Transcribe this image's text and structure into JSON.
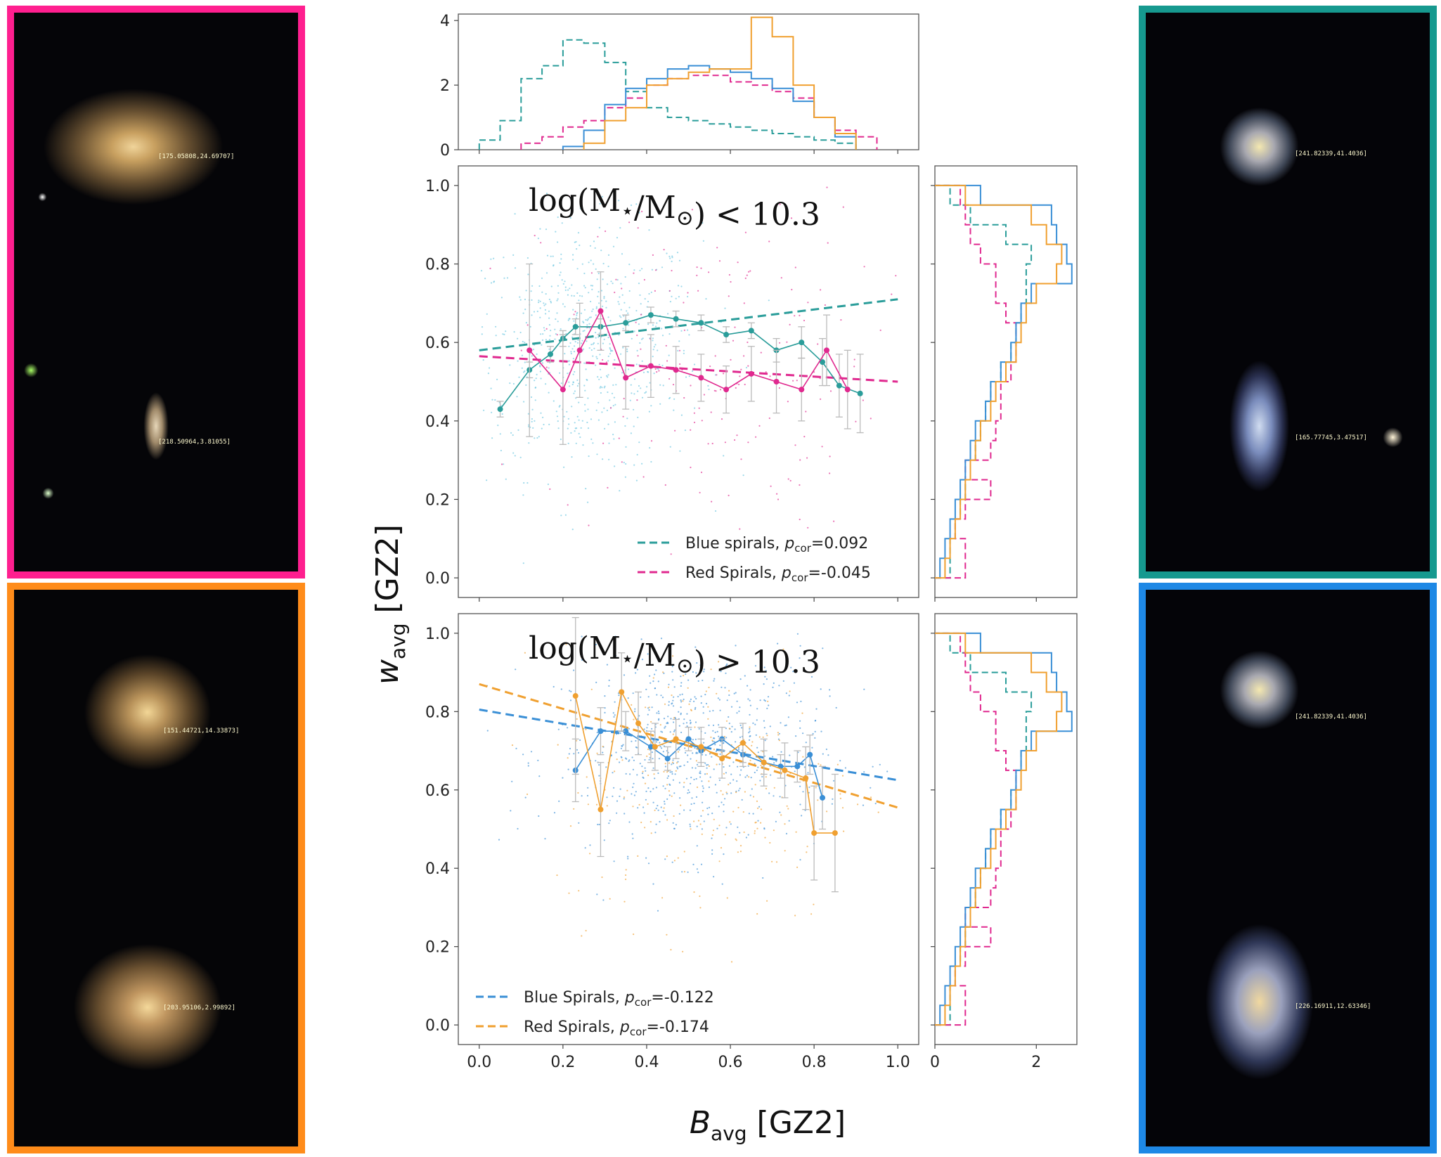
{
  "colors": {
    "teal": "#2a9d9a",
    "magenta": "#e0298f",
    "blue": "#3a8fd6",
    "orange": "#f0a030",
    "lightblue": "#6bc6e0",
    "panel_pink": "#ff1f8f",
    "panel_orange": "#ff8c1a",
    "panel_teal": "#16998f",
    "panel_blue": "#1e88e5"
  },
  "images": {
    "top_left": {
      "color": "panel_pink",
      "labels": [
        "[175.05808,24.69707]",
        "[218.50964,3.81055]"
      ]
    },
    "bottom_left": {
      "color": "panel_orange",
      "labels": [
        "[151.44721,14.33873]",
        "[203.95106,2.99892]"
      ]
    },
    "top_right": {
      "color": "panel_teal",
      "labels": [
        "[241.82339,41.4036]",
        "[165.77745,3.47517]"
      ]
    },
    "bottom_right": {
      "color": "panel_blue",
      "labels": [
        "[241.82339,41.4036]",
        "[226.16911,12.63346]"
      ]
    }
  },
  "chart_data": {
    "type": "scatter",
    "xlabel_main": "B",
    "xlabel_sub": "avg",
    "xlabel_suffix": " [GZ2]",
    "ylabel_main": "w",
    "ylabel_sub": "avg",
    "ylabel_suffix": " [GZ2]",
    "xlim": [
      -0.05,
      1.05
    ],
    "ylim": [
      -0.05,
      1.05
    ],
    "xticks": [
      "0.0",
      "0.2",
      "0.4",
      "0.6",
      "0.8",
      "1.0"
    ],
    "yticks": [
      "0.0",
      "0.2",
      "0.4",
      "0.6",
      "0.8",
      "1.0"
    ],
    "top_hist": {
      "ylim": [
        0,
        4.2
      ],
      "yticks": [
        "0",
        "2",
        "4"
      ],
      "series": [
        {
          "name": "blue spirals (low mass)",
          "color": "teal",
          "dashed": true,
          "edges": [
            0,
            0.05,
            0.1,
            0.15,
            0.2,
            0.25,
            0.3,
            0.35,
            0.4,
            0.45,
            0.5,
            0.55,
            0.6,
            0.65,
            0.7,
            0.75,
            0.8,
            0.85,
            0.9
          ],
          "values": [
            0.3,
            0.9,
            2.2,
            2.6,
            3.4,
            3.3,
            2.7,
            1.8,
            1.3,
            1.0,
            0.9,
            0.8,
            0.7,
            0.6,
            0.5,
            0.4,
            0.3,
            0.2
          ]
        },
        {
          "name": "red spirals (low mass)",
          "color": "magenta",
          "dashed": true,
          "edges": [
            0.1,
            0.15,
            0.2,
            0.25,
            0.3,
            0.35,
            0.4,
            0.45,
            0.5,
            0.55,
            0.6,
            0.65,
            0.7,
            0.75,
            0.8,
            0.85,
            0.9,
            0.95
          ],
          "values": [
            0.2,
            0.4,
            0.7,
            0.9,
            1.3,
            1.6,
            2.0,
            2.2,
            2.3,
            2.3,
            2.1,
            2.0,
            1.8,
            1.6,
            1.0,
            0.6,
            0.4
          ]
        },
        {
          "name": "blue spirals (high mass)",
          "color": "blue",
          "dashed": false,
          "edges": [
            0.2,
            0.25,
            0.3,
            0.35,
            0.4,
            0.45,
            0.5,
            0.55,
            0.6,
            0.65,
            0.7,
            0.75,
            0.8,
            0.85,
            0.9
          ],
          "values": [
            0.1,
            0.6,
            1.4,
            1.9,
            2.2,
            2.5,
            2.6,
            2.5,
            2.4,
            2.2,
            1.9,
            1.5,
            1.0,
            0.4
          ]
        },
        {
          "name": "red spirals (high mass)",
          "color": "orange",
          "dashed": false,
          "edges": [
            0.25,
            0.3,
            0.35,
            0.4,
            0.45,
            0.5,
            0.55,
            0.6,
            0.65,
            0.7,
            0.75,
            0.8,
            0.85,
            0.9
          ],
          "values": [
            0.2,
            0.9,
            1.3,
            2.0,
            2.2,
            2.4,
            2.5,
            2.5,
            4.1,
            3.5,
            2.0,
            1.0,
            0.5
          ]
        }
      ]
    },
    "right_hist": {
      "xlim": [
        0,
        2.8
      ],
      "xticks": [
        "0",
        "2"
      ],
      "series": [
        {
          "color": "teal",
          "dashed": true,
          "edges": [
            0,
            0.05,
            0.1,
            0.15,
            0.2,
            0.25,
            0.3,
            0.35,
            0.4,
            0.45,
            0.5,
            0.55,
            0.6,
            0.65,
            0.7,
            0.75,
            0.8,
            0.85,
            0.9,
            0.95,
            1.0
          ],
          "values": [
            0.3,
            0.3,
            0.4,
            0.5,
            0.6,
            0.7,
            0.8,
            0.9,
            1.0,
            1.1,
            1.3,
            1.5,
            1.6,
            1.7,
            1.8,
            1.8,
            1.9,
            1.4,
            0.7,
            0.3
          ]
        },
        {
          "color": "magenta",
          "dashed": true,
          "edges": [
            0,
            0.05,
            0.1,
            0.15,
            0.2,
            0.25,
            0.3,
            0.35,
            0.4,
            0.45,
            0.5,
            0.55,
            0.6,
            0.65,
            0.7,
            0.75,
            0.8,
            0.85,
            0.9,
            0.95,
            1.0
          ],
          "values": [
            0.6,
            0.6,
            0.4,
            0.6,
            1.1,
            0.6,
            1.1,
            1.2,
            1.3,
            1.3,
            1.5,
            1.6,
            1.6,
            1.4,
            1.2,
            1.2,
            0.9,
            0.7,
            0.6,
            0.5
          ]
        },
        {
          "color": "blue",
          "dashed": false,
          "edges": [
            0,
            0.05,
            0.1,
            0.15,
            0.2,
            0.25,
            0.3,
            0.35,
            0.4,
            0.45,
            0.5,
            0.55,
            0.6,
            0.65,
            0.7,
            0.75,
            0.8,
            0.85,
            0.9,
            0.95,
            1.0
          ],
          "values": [
            0.1,
            0.2,
            0.3,
            0.4,
            0.5,
            0.6,
            0.7,
            0.8,
            1.0,
            1.1,
            1.3,
            1.5,
            1.6,
            1.7,
            1.9,
            2.7,
            2.6,
            2.4,
            2.3,
            0.9
          ]
        },
        {
          "color": "orange",
          "dashed": false,
          "edges": [
            0,
            0.05,
            0.1,
            0.15,
            0.2,
            0.25,
            0.3,
            0.35,
            0.4,
            0.45,
            0.5,
            0.55,
            0.6,
            0.65,
            0.7,
            0.75,
            0.8,
            0.85,
            0.9,
            0.95,
            1.0
          ],
          "values": [
            0.2,
            0.3,
            0.4,
            0.5,
            0.6,
            0.7,
            0.8,
            0.9,
            1.1,
            1.2,
            1.4,
            1.6,
            1.7,
            1.8,
            2.0,
            2.4,
            2.5,
            2.2,
            1.9,
            0.6
          ]
        }
      ]
    },
    "panels": [
      {
        "id": "low",
        "title": "log(M",
        "title_star": "⋆",
        "title_mid": "/M",
        "title_sun": "⊙",
        "title_end": ") < 10.3",
        "scatter_series": [
          {
            "color": "lightblue",
            "n": 700,
            "xc": 0.25,
            "xs": 0.14,
            "yc": 0.58,
            "ys": 0.16
          },
          {
            "color": "magenta",
            "n": 200,
            "xc": 0.55,
            "xs": 0.2,
            "yc": 0.55,
            "ys": 0.22
          }
        ],
        "binned": [
          {
            "name": "Blue spirals",
            "color": "teal",
            "x": [
              0.05,
              0.12,
              0.17,
              0.2,
              0.23,
              0.29,
              0.35,
              0.41,
              0.47,
              0.53,
              0.59,
              0.65,
              0.71,
              0.77,
              0.82,
              0.86,
              0.91
            ],
            "y": [
              0.43,
              0.53,
              0.57,
              0.61,
              0.64,
              0.64,
              0.65,
              0.67,
              0.66,
              0.65,
              0.62,
              0.63,
              0.58,
              0.6,
              0.55,
              0.49,
              0.47
            ],
            "err": [
              0.02,
              0.02,
              0.02,
              0.02,
              0.02,
              0.02,
              0.02,
              0.02,
              0.02,
              0.02,
              0.02,
              0.02,
              0.03,
              0.04,
              0.06,
              0.08,
              0.1
            ]
          },
          {
            "name": "Red Spirals",
            "color": "magenta",
            "x": [
              0.12,
              0.2,
              0.24,
              0.29,
              0.35,
              0.41,
              0.47,
              0.53,
              0.59,
              0.65,
              0.71,
              0.77,
              0.83,
              0.88
            ],
            "y": [
              0.58,
              0.48,
              0.58,
              0.68,
              0.51,
              0.54,
              0.53,
              0.51,
              0.48,
              0.52,
              0.5,
              0.48,
              0.58,
              0.48
            ],
            "err": [
              0.22,
              0.14,
              0.12,
              0.1,
              0.08,
              0.08,
              0.06,
              0.06,
              0.06,
              0.07,
              0.08,
              0.08,
              0.09,
              0.1
            ]
          }
        ],
        "fits": [
          {
            "name": "Blue spirals",
            "color": "teal",
            "x": [
              0,
              1.0
            ],
            "y": [
              0.58,
              0.71
            ]
          },
          {
            "name": "Red Spirals",
            "color": "magenta",
            "x": [
              0,
              1.0
            ],
            "y": [
              0.565,
              0.5
            ]
          }
        ],
        "legend": [
          {
            "color": "teal",
            "label": "Blue spirals, ",
            "p": "p",
            "sub": "cor",
            "val": "=0.092"
          },
          {
            "color": "magenta",
            "label": "Red Spirals, ",
            "p": "p",
            "sub": "cor",
            "val": "=-0.045"
          }
        ]
      },
      {
        "id": "high",
        "title": "log(M",
        "title_star": "⋆",
        "title_mid": "/M",
        "title_sun": "⊙",
        "title_end": ") > 10.3",
        "scatter_series": [
          {
            "color": "blue",
            "n": 700,
            "xc": 0.5,
            "xs": 0.16,
            "yc": 0.7,
            "ys": 0.13
          },
          {
            "color": "orange",
            "n": 250,
            "xc": 0.55,
            "xs": 0.18,
            "yc": 0.62,
            "ys": 0.18
          }
        ],
        "binned": [
          {
            "name": "Blue Spirals",
            "color": "blue",
            "x": [
              0.23,
              0.29,
              0.35,
              0.41,
              0.45,
              0.5,
              0.53,
              0.58,
              0.63,
              0.68,
              0.72,
              0.76,
              0.79,
              0.82
            ],
            "y": [
              0.65,
              0.75,
              0.75,
              0.71,
              0.68,
              0.73,
              0.7,
              0.73,
              0.69,
              0.67,
              0.66,
              0.66,
              0.69,
              0.58
            ],
            "err": [
              0.08,
              0.06,
              0.05,
              0.04,
              0.03,
              0.03,
              0.03,
              0.03,
              0.03,
              0.03,
              0.03,
              0.04,
              0.05,
              0.08
            ]
          },
          {
            "name": "Red Spirals",
            "color": "orange",
            "x": [
              0.23,
              0.29,
              0.34,
              0.38,
              0.42,
              0.47,
              0.53,
              0.58,
              0.63,
              0.68,
              0.73,
              0.78,
              0.8,
              0.85
            ],
            "y": [
              0.84,
              0.55,
              0.85,
              0.77,
              0.71,
              0.73,
              0.71,
              0.68,
              0.72,
              0.67,
              0.65,
              0.63,
              0.49,
              0.49
            ],
            "err": [
              0.2,
              0.12,
              0.1,
              0.08,
              0.06,
              0.05,
              0.05,
              0.05,
              0.05,
              0.06,
              0.07,
              0.08,
              0.12,
              0.15
            ]
          }
        ],
        "fits": [
          {
            "name": "Blue Spirals",
            "color": "blue",
            "x": [
              0,
              1.0
            ],
            "y": [
              0.805,
              0.625
            ]
          },
          {
            "name": "Red Spirals",
            "color": "orange",
            "x": [
              0,
              1.0
            ],
            "y": [
              0.87,
              0.555
            ]
          }
        ],
        "legend": [
          {
            "color": "blue",
            "label": "Blue Spirals, ",
            "p": "p",
            "sub": "cor",
            "val": "=-0.122"
          },
          {
            "color": "orange",
            "label": "Red Spirals, ",
            "p": "p",
            "sub": "cor",
            "val": "=-0.174"
          }
        ]
      }
    ]
  }
}
